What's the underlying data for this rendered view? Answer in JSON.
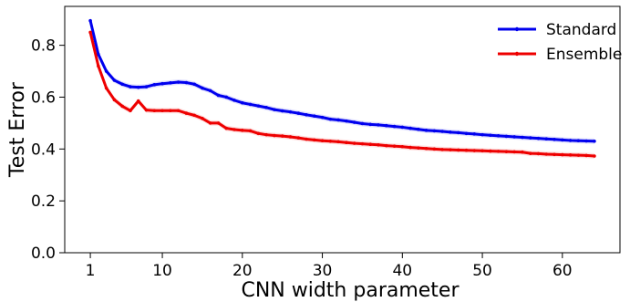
{
  "chart_data": {
    "type": "line",
    "title": "",
    "xlabel": "CNN width parameter",
    "ylabel": "Test Error",
    "xlim": [
      -2.2,
      67.2
    ],
    "ylim": [
      0.0,
      0.95
    ],
    "xticks": [
      1,
      10,
      20,
      30,
      40,
      50,
      60
    ],
    "yticks": [
      0.0,
      0.2,
      0.4,
      0.6,
      0.8
    ],
    "ytick_labels": [
      "0.0",
      "0.2",
      "0.4",
      "0.6",
      "0.8"
    ],
    "grid": false,
    "legend_position": "top-right",
    "x": [
      1,
      2,
      3,
      4,
      5,
      6,
      7,
      8,
      9,
      10,
      11,
      12,
      13,
      14,
      15,
      16,
      17,
      18,
      19,
      20,
      21,
      22,
      23,
      24,
      25,
      26,
      27,
      28,
      29,
      30,
      31,
      32,
      33,
      34,
      35,
      36,
      37,
      38,
      39,
      40,
      41,
      42,
      43,
      44,
      45,
      46,
      47,
      48,
      49,
      50,
      51,
      52,
      53,
      54,
      55,
      56,
      57,
      58,
      59,
      60,
      61,
      62,
      63,
      64
    ],
    "series": [
      {
        "name": "Standard",
        "color": "#0000ee",
        "values": [
          0.895,
          0.765,
          0.7,
          0.665,
          0.65,
          0.64,
          0.638,
          0.64,
          0.648,
          0.652,
          0.655,
          0.658,
          0.656,
          0.65,
          0.635,
          0.625,
          0.607,
          0.6,
          0.588,
          0.578,
          0.572,
          0.566,
          0.56,
          0.552,
          0.547,
          0.543,
          0.538,
          0.532,
          0.527,
          0.522,
          0.515,
          0.512,
          0.508,
          0.503,
          0.498,
          0.495,
          0.493,
          0.49,
          0.487,
          0.484,
          0.48,
          0.476,
          0.472,
          0.47,
          0.468,
          0.465,
          0.463,
          0.46,
          0.458,
          0.455,
          0.453,
          0.451,
          0.449,
          0.447,
          0.445,
          0.443,
          0.441,
          0.439,
          0.437,
          0.435,
          0.433,
          0.432,
          0.431,
          0.43
        ]
      },
      {
        "name": "Ensemble",
        "color": "#ee0000",
        "values": [
          0.85,
          0.72,
          0.635,
          0.59,
          0.565,
          0.548,
          0.585,
          0.55,
          0.548,
          0.548,
          0.548,
          0.548,
          0.538,
          0.53,
          0.518,
          0.5,
          0.5,
          0.48,
          0.475,
          0.472,
          0.47,
          0.46,
          0.455,
          0.452,
          0.45,
          0.447,
          0.443,
          0.438,
          0.435,
          0.432,
          0.43,
          0.428,
          0.425,
          0.422,
          0.42,
          0.418,
          0.416,
          0.413,
          0.411,
          0.409,
          0.406,
          0.404,
          0.402,
          0.4,
          0.398,
          0.397,
          0.396,
          0.395,
          0.394,
          0.393,
          0.392,
          0.391,
          0.39,
          0.389,
          0.388,
          0.383,
          0.382,
          0.38,
          0.379,
          0.378,
          0.377,
          0.376,
          0.375,
          0.373
        ]
      }
    ]
  }
}
